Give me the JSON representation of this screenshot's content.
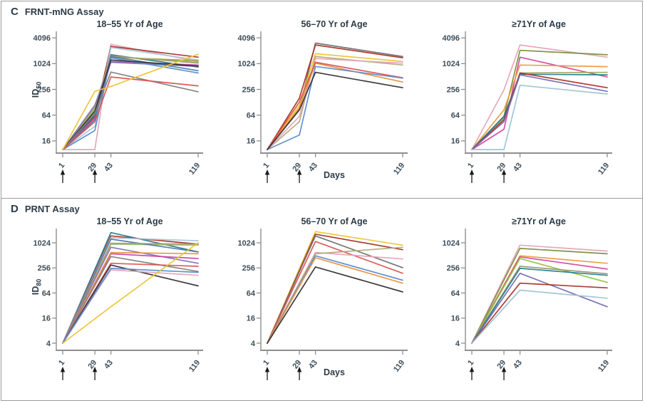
{
  "panels": [
    {
      "letter": "C",
      "title": "FRNT-mNG Assay"
    },
    {
      "letter": "D",
      "title": "PRNT Assay"
    }
  ],
  "chart_data": [
    {
      "type": "line",
      "panel": "C",
      "panel_title": "FRNT-mNG Assay",
      "ylabel": {
        "base": "ID",
        "sub": "50"
      },
      "xlabel": "Days",
      "yticks": [
        16,
        64,
        256,
        1024,
        4096
      ],
      "xticks": [
        1,
        29,
        43,
        119
      ],
      "arrow_days": [
        1,
        29
      ],
      "x": [
        1,
        29,
        43,
        119
      ],
      "xlim": [
        1,
        119
      ],
      "ylim": [
        8.3,
        5200
      ],
      "grid": false,
      "legend": "none",
      "charts": [
        {
          "title": "18–55 Yr of Age",
          "series": [
            {
              "color": "#e5a3b8",
              "values": [
                10,
                10,
                2900,
                1150
              ]
            },
            {
              "color": "#a93226",
              "values": [
                10,
                60,
                2600,
                1450
              ]
            },
            {
              "color": "#a9c6d9",
              "values": [
                10,
                35,
                2450,
                1250
              ]
            },
            {
              "color": "#1f7a8c",
              "values": [
                10,
                65,
                1650,
                850
              ]
            },
            {
              "color": "#8fbf6f",
              "values": [
                10,
                90,
                1500,
                1100
              ]
            },
            {
              "color": "#9aa23c",
              "values": [
                10,
                75,
                1450,
                1200
              ]
            },
            {
              "color": "#b09c6e",
              "values": [
                10,
                100,
                1550,
                1050
              ]
            },
            {
              "color": "#c9479f",
              "values": [
                10,
                55,
                1150,
                950
              ]
            },
            {
              "color": "#8171b8",
              "values": [
                10,
                110,
                1100,
                880
              ]
            },
            {
              "color": "#4e79a7",
              "values": [
                10,
                50,
                1500,
                700
              ]
            },
            {
              "color": "#5b8bd0",
              "values": [
                10,
                28,
                1400,
                620
              ]
            },
            {
              "color": "#333333",
              "values": [
                10,
                80,
                1250,
                900
              ]
            },
            {
              "color": "#808080",
              "values": [
                10,
                70,
                650,
                225
              ]
            },
            {
              "color": "#d9534f",
              "values": [
                10,
                45,
                500,
                310
              ]
            },
            {
              "color": "#ecc530",
              "values": [
                10,
                230,
                300,
                1700
              ]
            }
          ]
        },
        {
          "title": "56–70 Yr of Age",
          "series": [
            {
              "color": "#6f6f6f",
              "values": [
                10,
                90,
                3100,
                1500
              ]
            },
            {
              "color": "#a93226",
              "values": [
                10,
                160,
                2800,
                1400
              ]
            },
            {
              "color": "#ecc530",
              "values": [
                10,
                110,
                1750,
                1150
              ]
            },
            {
              "color": "#b3ab7a",
              "values": [
                10,
                45,
                1500,
                950
              ]
            },
            {
              "color": "#e5a3b8",
              "values": [
                10,
                60,
                1350,
                1050
              ]
            },
            {
              "color": "#e8923a",
              "values": [
                10,
                95,
                1050,
                380
              ]
            },
            {
              "color": "#d9534f",
              "values": [
                10,
                130,
                1100,
                480
              ]
            },
            {
              "color": "#5b8bd0",
              "values": [
                10,
                22,
                880,
                470
              ]
            },
            {
              "color": "#333333",
              "values": [
                10,
                85,
                640,
                280
              ]
            }
          ]
        },
        {
          "title": "≥71Yr of Age",
          "series": [
            {
              "color": "#e5a3b8",
              "values": [
                10,
                250,
                2800,
                1450
              ]
            },
            {
              "color": "#7a8f3c",
              "values": [
                10,
                60,
                2100,
                1650
              ]
            },
            {
              "color": "#d4479f",
              "values": [
                10,
                30,
                1450,
                500
              ]
            },
            {
              "color": "#eb9b3f",
              "values": [
                10,
                85,
                950,
                870
              ]
            },
            {
              "color": "#a8a866",
              "values": [
                10,
                55,
                620,
                640
              ]
            },
            {
              "color": "#22808e",
              "values": [
                10,
                60,
                580,
                560
              ]
            },
            {
              "color": "#a93226",
              "values": [
                10,
                50,
                620,
                280
              ]
            },
            {
              "color": "#7668b4",
              "values": [
                10,
                45,
                560,
                230
              ]
            },
            {
              "color": "#9cc3d5",
              "values": [
                10,
                10,
                320,
                200
              ]
            }
          ]
        }
      ]
    },
    {
      "type": "line",
      "panel": "D",
      "panel_title": "PRNT Assay",
      "ylabel": {
        "base": "ID",
        "sub": "80"
      },
      "xlabel": "Days",
      "yticks": [
        4,
        16,
        64,
        256,
        1024
      ],
      "xticks": [
        1,
        29,
        43,
        119
      ],
      "arrow_days": [
        1,
        29
      ],
      "x": [
        1,
        43,
        119
      ],
      "xlim": [
        1,
        119
      ],
      "ylim": [
        2.7,
        2000
      ],
      "grid": false,
      "legend": "none",
      "charts": [
        {
          "title": "18–55 Yr of Age",
          "series": [
            {
              "color": "#1f7a8c",
              "values": [
                4,
                1800,
                620
              ]
            },
            {
              "color": "#a93226",
              "values": [
                4,
                1500,
                950
              ]
            },
            {
              "color": "#a9c6d9",
              "values": [
                4,
                1350,
                1150
              ]
            },
            {
              "color": "#8fbf6f",
              "values": [
                4,
                950,
                900
              ]
            },
            {
              "color": "#4e79a7",
              "values": [
                4,
                1250,
                620
              ]
            },
            {
              "color": "#b09c6e",
              "values": [
                4,
                1000,
                950
              ]
            },
            {
              "color": "#8171b8",
              "values": [
                4,
                800,
                330
              ]
            },
            {
              "color": "#c9479f",
              "values": [
                4,
                560,
                430
              ]
            },
            {
              "color": "#e8923a",
              "values": [
                4,
                600,
                560
              ]
            },
            {
              "color": "#808080",
              "values": [
                4,
                480,
                210
              ]
            },
            {
              "color": "#d9534f",
              "values": [
                4,
                330,
                280
              ]
            },
            {
              "color": "#333333",
              "values": [
                4,
                300,
                95
              ]
            },
            {
              "color": "#e5a3b8",
              "values": [
                4,
                230,
                170
              ]
            },
            {
              "color": "#5b8bd0",
              "values": [
                4,
                250,
                200
              ]
            },
            {
              "color": "#ecc530",
              "values": [
                4,
                30,
                1024
              ]
            }
          ]
        },
        {
          "title": "56–70 Yr of Age",
          "series": [
            {
              "color": "#ecc530",
              "values": [
                4,
                1900,
                900
              ]
            },
            {
              "color": "#a93226",
              "values": [
                4,
                1650,
                700
              ]
            },
            {
              "color": "#6f6f6f",
              "values": [
                4,
                1500,
                260
              ]
            },
            {
              "color": "#d9534f",
              "values": [
                4,
                1100,
                190
              ]
            },
            {
              "color": "#e5a3b8",
              "values": [
                4,
                600,
                420
              ]
            },
            {
              "color": "#b3ab7a",
              "values": [
                4,
                560,
                800
              ]
            },
            {
              "color": "#5b8bd0",
              "values": [
                4,
                500,
                130
              ]
            },
            {
              "color": "#e8923a",
              "values": [
                4,
                450,
                110
              ]
            },
            {
              "color": "#333333",
              "values": [
                4,
                270,
                68
              ]
            }
          ]
        },
        {
          "title": "≥71Yr of Age",
          "series": [
            {
              "color": "#e5a3b8",
              "values": [
                4,
                900,
                650
              ]
            },
            {
              "color": "#7a8f3c",
              "values": [
                4,
                750,
                560
              ]
            },
            {
              "color": "#eb9b3f",
              "values": [
                4,
                500,
                330
              ]
            },
            {
              "color": "#d4479f",
              "values": [
                4,
                470,
                240
              ]
            },
            {
              "color": "#8cc63f",
              "values": [
                4,
                430,
                115
              ]
            },
            {
              "color": "#a09072",
              "values": [
                4,
                280,
                185
              ]
            },
            {
              "color": "#22808e",
              "values": [
                4,
                250,
                170
              ]
            },
            {
              "color": "#7668b4",
              "values": [
                4,
                190,
                30
              ]
            },
            {
              "color": "#a93226",
              "values": [
                4,
                110,
                85
              ]
            },
            {
              "color": "#9cc3d5",
              "values": [
                4,
                75,
                48
              ]
            }
          ]
        }
      ]
    }
  ],
  "style": {
    "axis_color": "#8f8f8f",
    "text_color": "#2c3b47",
    "arrow_color": "#1a1a1a",
    "border_color": "#9b9b9b"
  }
}
